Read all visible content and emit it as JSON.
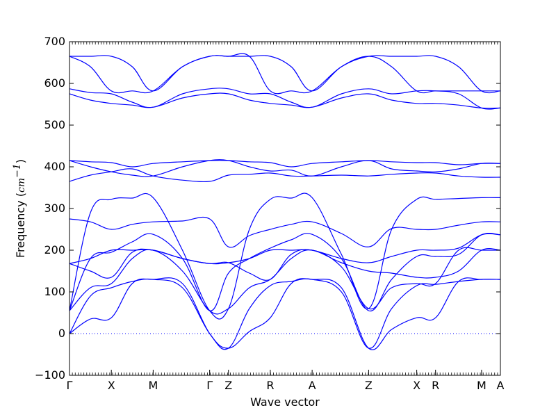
{
  "chart_data": {
    "type": "line",
    "title": "",
    "xlabel": "Wave vector",
    "ylabel_text": "Frequency (",
    "ylabel_unit": "cm",
    "ylabel_exp": "−1",
    "ylabel_close": ")",
    "ylim": [
      -100,
      700
    ],
    "yticks": [
      -100,
      0,
      100,
      200,
      300,
      400,
      500,
      600,
      700
    ],
    "xlim": [
      0,
      10.3
    ],
    "high_symmetry_points": [
      {
        "label": "Γ",
        "x": 0
      },
      {
        "label": "X",
        "x": 1.0
      },
      {
        "label": "M",
        "x": 2.0
      },
      {
        "label": "Γ",
        "x": 3.35
      },
      {
        "label": "Z",
        "x": 3.8
      },
      {
        "label": "R",
        "x": 4.8
      },
      {
        "label": "A",
        "x": 5.8
      },
      {
        "label": "Z",
        "x": 7.15
      },
      {
        "label": "X",
        "x": 8.3
      },
      {
        "label": "R",
        "x": 8.75
      },
      {
        "label": "M",
        "x": 9.85
      },
      {
        "label": "A",
        "x": 10.3
      }
    ],
    "zero_line": {
      "y": 0,
      "style": "dotted"
    },
    "series_color": "#0000ff",
    "bands": [
      {
        "x": [
          0,
          0.5,
          1.0,
          1.5,
          2.0,
          2.7,
          3.35,
          3.8,
          4.3,
          4.8,
          5.3,
          5.8,
          6.5,
          7.15,
          7.7,
          8.3,
          8.75,
          9.3,
          9.85,
          10.3
        ],
        "y": [
          0,
          35,
          38,
          120,
          130,
          120,
          0,
          -35,
          5,
          38,
          120,
          130,
          110,
          -35,
          10,
          38,
          38,
          125,
          130,
          130
        ]
      },
      {
        "x": [
          0,
          0.5,
          1.0,
          1.5,
          2.0,
          2.7,
          3.35,
          3.8,
          4.3,
          4.8,
          5.3,
          5.8,
          6.5,
          7.15,
          7.7,
          8.3,
          8.75,
          9.3,
          9.85,
          10.3
        ],
        "y": [
          0,
          90,
          110,
          125,
          130,
          110,
          0,
          -35,
          60,
          115,
          125,
          130,
          100,
          -35,
          60,
          115,
          118,
          125,
          130,
          130
        ]
      },
      {
        "x": [
          0,
          0.5,
          1.0,
          1.5,
          2.0,
          2.7,
          3.35,
          3.8,
          4.3,
          4.8,
          5.3,
          5.8,
          6.5,
          7.15,
          7.7,
          8.3,
          8.75,
          9.3,
          9.85,
          10.3
        ],
        "y": [
          55,
          110,
          120,
          180,
          200,
          150,
          55,
          60,
          110,
          130,
          180,
          200,
          160,
          60,
          110,
          120,
          120,
          200,
          200,
          200
        ]
      },
      {
        "x": [
          0,
          0.5,
          1.0,
          1.5,
          2.0,
          2.7,
          3.35,
          3.8,
          4.3,
          4.8,
          5.3,
          5.8,
          6.5,
          7.15,
          7.7,
          8.3,
          8.75,
          9.3,
          9.85,
          10.3
        ],
        "y": [
          168,
          150,
          135,
          195,
          200,
          180,
          168,
          170,
          145,
          130,
          190,
          200,
          170,
          150,
          145,
          135,
          135,
          150,
          200,
          200
        ]
      },
      {
        "x": [
          0,
          0.5,
          1.0,
          1.5,
          2.0,
          2.7,
          3.35,
          3.8,
          4.3,
          4.8,
          5.3,
          5.8,
          6.5,
          7.15,
          7.7,
          8.3,
          8.75,
          9.3,
          9.85,
          10.3
        ],
        "y": [
          168,
          180,
          200,
          200,
          200,
          180,
          168,
          170,
          180,
          200,
          200,
          200,
          180,
          170,
          185,
          200,
          200,
          205,
          237,
          237
        ]
      },
      {
        "x": [
          0,
          0.5,
          1.0,
          1.5,
          2.0,
          2.7,
          3.35,
          3.8,
          4.3,
          4.8,
          5.3,
          5.8,
          6.5,
          7.15,
          7.7,
          8.3,
          8.75,
          9.3,
          9.85,
          10.3
        ],
        "y": [
          55,
          180,
          195,
          220,
          238,
          180,
          55,
          145,
          180,
          205,
          225,
          238,
          180,
          55,
          130,
          185,
          185,
          190,
          237,
          237
        ]
      },
      {
        "x": [
          0,
          0.5,
          1.0,
          1.5,
          2.0,
          2.7,
          3.35,
          3.8,
          4.3,
          4.8,
          5.3,
          5.8,
          6.5,
          7.15,
          7.7,
          8.3,
          8.75,
          9.3,
          9.85,
          10.3
        ],
        "y": [
          275,
          268,
          250,
          262,
          268,
          270,
          275,
          208,
          235,
          250,
          262,
          268,
          240,
          208,
          252,
          250,
          250,
          260,
          268,
          268
        ]
      },
      {
        "x": [
          0,
          0.5,
          1.0,
          1.5,
          2.0,
          2.7,
          3.35,
          3.8,
          4.3,
          4.8,
          5.3,
          5.8,
          6.5,
          7.15,
          7.7,
          8.3,
          8.75,
          9.3,
          9.85,
          10.3
        ],
        "y": [
          55,
          290,
          322,
          325,
          326,
          200,
          55,
          60,
          250,
          322,
          325,
          326,
          190,
          60,
          250,
          322,
          322,
          324,
          326,
          326
        ]
      },
      {
        "x": [
          0,
          0.5,
          1.0,
          1.5,
          2.0,
          2.7,
          3.35,
          3.8,
          4.3,
          4.8,
          5.3,
          5.8,
          6.5,
          7.15,
          7.7,
          8.3,
          8.75,
          9.3,
          9.85,
          10.3
        ],
        "y": [
          365,
          380,
          388,
          395,
          378,
          368,
          365,
          380,
          382,
          385,
          378,
          378,
          380,
          378,
          382,
          385,
          385,
          378,
          375,
          375
        ]
      },
      {
        "x": [
          0,
          0.5,
          1.0,
          1.5,
          2.0,
          2.7,
          3.35,
          3.8,
          4.3,
          4.8,
          5.3,
          5.8,
          6.5,
          7.15,
          7.7,
          8.3,
          8.75,
          9.3,
          9.85,
          10.3
        ],
        "y": [
          415,
          400,
          388,
          380,
          378,
          400,
          415,
          415,
          400,
          390,
          392,
          378,
          400,
          415,
          395,
          390,
          388,
          395,
          408,
          408
        ]
      },
      {
        "x": [
          0,
          0.5,
          1.0,
          1.5,
          2.0,
          2.7,
          3.35,
          3.8,
          4.3,
          4.8,
          5.3,
          5.8,
          6.5,
          7.15,
          7.7,
          8.3,
          8.75,
          9.3,
          9.85,
          10.3
        ],
        "y": [
          415,
          412,
          410,
          400,
          408,
          412,
          415,
          415,
          412,
          410,
          400,
          408,
          412,
          415,
          412,
          410,
          410,
          405,
          408,
          408
        ]
      },
      {
        "x": [
          0,
          0.5,
          1.0,
          1.5,
          2.0,
          2.7,
          3.35,
          3.8,
          4.3,
          4.8,
          5.3,
          5.8,
          6.5,
          7.15,
          7.7,
          8.3,
          8.75,
          9.3,
          9.85,
          10.3
        ],
        "y": [
          575,
          560,
          552,
          548,
          543,
          565,
          575,
          575,
          560,
          552,
          548,
          543,
          565,
          575,
          560,
          552,
          552,
          548,
          541,
          541
        ]
      },
      {
        "x": [
          0,
          0.5,
          1.0,
          1.5,
          2.0,
          2.7,
          3.35,
          3.8,
          4.3,
          4.8,
          5.3,
          5.8,
          6.5,
          7.15,
          7.7,
          8.3,
          8.75,
          9.3,
          9.85,
          10.3
        ],
        "y": [
          587,
          578,
          575,
          555,
          543,
          575,
          587,
          587,
          575,
          575,
          555,
          543,
          575,
          587,
          575,
          582,
          582,
          575,
          541,
          541
        ]
      },
      {
        "x": [
          0,
          0.5,
          1.0,
          1.5,
          2.0,
          2.7,
          3.35,
          3.8,
          4.3,
          4.8,
          5.3,
          5.8,
          6.5,
          7.15,
          7.7,
          8.3,
          8.75,
          9.3,
          9.85,
          10.3
        ],
        "y": [
          665,
          640,
          582,
          582,
          582,
          640,
          665,
          665,
          665,
          582,
          582,
          582,
          640,
          665,
          640,
          582,
          582,
          582,
          582,
          582
        ]
      },
      {
        "x": [
          0,
          0.5,
          1.0,
          1.5,
          2.0,
          2.7,
          3.35,
          3.8,
          4.3,
          4.8,
          5.3,
          5.8,
          6.5,
          7.15,
          7.7,
          8.3,
          8.75,
          9.3,
          9.85,
          10.3
        ],
        "y": [
          665,
          665,
          665,
          640,
          582,
          640,
          665,
          665,
          665,
          665,
          640,
          582,
          640,
          665,
          665,
          665,
          665,
          640,
          582,
          582
        ]
      }
    ]
  }
}
